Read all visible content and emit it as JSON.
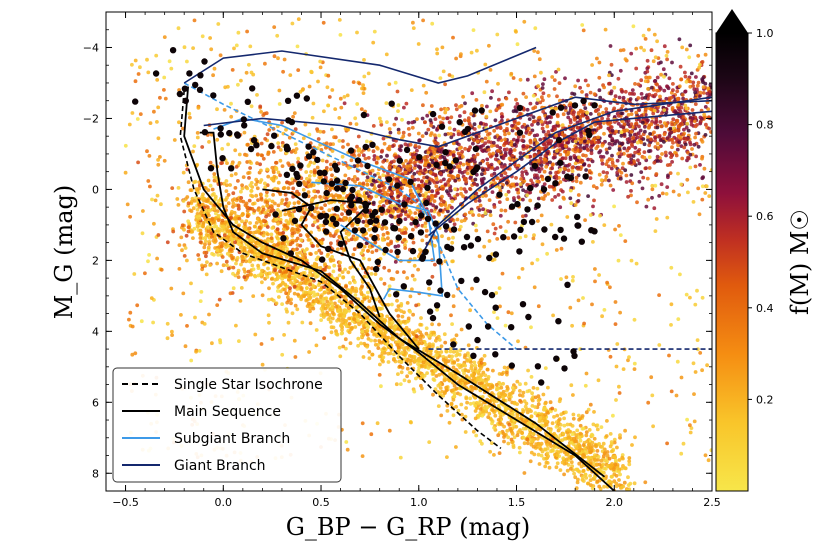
{
  "chart_data": {
    "type": "scatter",
    "xlabel": "G_BP − G_RP (mag)",
    "ylabel": "M_G (mag)",
    "xlim": [
      -0.6,
      2.5
    ],
    "ylim": [
      8.5,
      -5.0
    ],
    "y_inverted": true,
    "xticks": [
      -0.5,
      0.0,
      0.5,
      1.0,
      1.5,
      2.0,
      2.5
    ],
    "xtick_labels": [
      "−0.5",
      "0.0",
      "0.5",
      "1.0",
      "1.5",
      "2.0",
      "2.5"
    ],
    "yticks": [
      -4,
      -2,
      0,
      2,
      4,
      6,
      8
    ],
    "ytick_labels": [
      "−4",
      "−2",
      "0",
      "2",
      "4",
      "6",
      "8"
    ],
    "colorbar": {
      "label": "f(M) M☉",
      "range": [
        0.0,
        1.0
      ],
      "extend": "max",
      "ticks": [
        0.2,
        0.4,
        0.6,
        0.8,
        1.0
      ],
      "tick_labels": [
        "0.2",
        "0.4",
        "0.6",
        "0.8",
        "1.0"
      ],
      "colormap": [
        "#f7e64a",
        "#f9b11c",
        "#ec6e0a",
        "#c7331f",
        "#8a0e3c",
        "#4a0b3a",
        "#1a0714",
        "#000000"
      ]
    },
    "legend": {
      "placement": "lower-left",
      "entries": [
        {
          "label": "Single Star Isochrone",
          "color": "#000000",
          "style": "dashed"
        },
        {
          "label": "Main Sequence",
          "color": "#000000",
          "style": "solid"
        },
        {
          "label": "Subgiant Branch",
          "color": "#3d9ae8",
          "style": "solid"
        },
        {
          "label": "Giant Branch",
          "color": "#14286e",
          "style": "solid"
        }
      ]
    },
    "series": [
      {
        "name": "Single Star Isochrone",
        "color": "#000000",
        "style": "dashed",
        "points": [
          [
            -0.2,
            -2.8
          ],
          [
            -0.22,
            -1.5
          ],
          [
            -0.15,
            0.0
          ],
          [
            -0.05,
            1.2
          ],
          [
            0.1,
            1.8
          ],
          [
            0.3,
            2.2
          ],
          [
            0.5,
            2.6
          ],
          [
            0.7,
            3.5
          ],
          [
            0.9,
            4.7
          ],
          [
            1.1,
            5.8
          ],
          [
            1.3,
            6.8
          ],
          [
            1.42,
            7.3
          ]
        ]
      },
      {
        "name": "Main Sequence",
        "color": "#000000",
        "style": "solid",
        "points": [
          [
            -0.18,
            -2.9
          ],
          [
            -0.2,
            -1.5
          ],
          [
            -0.1,
            0.0
          ],
          [
            0.05,
            1.0
          ],
          [
            0.2,
            1.5
          ],
          [
            0.4,
            2.0
          ],
          [
            0.6,
            2.8
          ],
          [
            0.8,
            3.8
          ],
          [
            1.0,
            4.6
          ],
          [
            1.2,
            5.5
          ],
          [
            1.5,
            6.5
          ],
          [
            1.8,
            7.5
          ],
          [
            2.0,
            8.5
          ]
        ]
      },
      {
        "name": "Main Sequence",
        "color": "#000000",
        "style": "solid",
        "points": [
          [
            -0.12,
            -1.6
          ],
          [
            -0.05,
            -1.6
          ],
          [
            -0.03,
            -0.5
          ],
          [
            0.0,
            0.5
          ],
          [
            0.05,
            1.2
          ],
          [
            0.2,
            1.8
          ],
          [
            0.5,
            2.3
          ],
          [
            0.7,
            3.2
          ],
          [
            0.9,
            4.2
          ],
          [
            1.2,
            5.2
          ],
          [
            1.6,
            6.6
          ],
          [
            1.95,
            8.1
          ]
        ]
      },
      {
        "name": "Main Sequence",
        "color": "#000000",
        "style": "solid",
        "points": [
          [
            0.2,
            0.0
          ],
          [
            0.35,
            0.1
          ],
          [
            0.45,
            0.5
          ],
          [
            0.4,
            1.0
          ],
          [
            0.5,
            1.6
          ],
          [
            0.7,
            2.0
          ],
          [
            0.85,
            3.5
          ],
          [
            1.0,
            4.5
          ]
        ]
      },
      {
        "name": "Main Sequence",
        "color": "#000000",
        "style": "solid",
        "points": [
          [
            0.3,
            0.6
          ],
          [
            0.55,
            0.3
          ],
          [
            0.75,
            0.4
          ],
          [
            0.6,
            1.2
          ],
          [
            0.65,
            2.0
          ],
          [
            0.75,
            2.8
          ],
          [
            0.8,
            3.6
          ]
        ]
      },
      {
        "name": "Subgiant Branch",
        "color": "#3d9ae8",
        "style": "dashed",
        "points": [
          [
            -0.2,
            -3.0
          ],
          [
            0.0,
            -2.4
          ],
          [
            0.3,
            -1.6
          ],
          [
            0.6,
            -0.8
          ],
          [
            0.9,
            0.0
          ],
          [
            1.0,
            0.4
          ],
          [
            1.1,
            1.5
          ],
          [
            1.2,
            2.8
          ],
          [
            1.35,
            3.8
          ],
          [
            1.5,
            4.5
          ]
        ]
      },
      {
        "name": "Subgiant Branch",
        "color": "#3d9ae8",
        "style": "solid",
        "points": [
          [
            -0.05,
            -1.7
          ],
          [
            0.1,
            -2.0
          ],
          [
            0.3,
            -1.8
          ],
          [
            0.5,
            -1.3
          ],
          [
            0.7,
            -0.8
          ],
          [
            0.95,
            -0.3
          ],
          [
            1.05,
            0.8
          ],
          [
            1.08,
            2.0
          ],
          [
            0.9,
            2.0
          ],
          [
            0.75,
            1.5
          ],
          [
            0.6,
            1.0
          ]
        ]
      },
      {
        "name": "Subgiant Branch",
        "color": "#3d9ae8",
        "style": "solid",
        "points": [
          [
            0.45,
            -0.2
          ],
          [
            0.7,
            -0.1
          ],
          [
            0.9,
            0.4
          ],
          [
            1.05,
            0.6
          ],
          [
            1.1,
            1.3
          ],
          [
            1.12,
            3.0
          ],
          [
            1.0,
            2.9
          ],
          [
            0.85,
            2.8
          ],
          [
            0.82,
            3.1
          ]
        ]
      },
      {
        "name": "Giant Branch",
        "color": "#14286e",
        "style": "solid",
        "points": [
          [
            -0.2,
            -3.0
          ],
          [
            0.0,
            -3.7
          ],
          [
            0.3,
            -3.9
          ],
          [
            0.8,
            -3.5
          ],
          [
            1.1,
            -3.0
          ],
          [
            1.25,
            -3.2
          ],
          [
            1.6,
            -4.0
          ]
        ]
      },
      {
        "name": "Giant Branch",
        "color": "#14286e",
        "style": "solid",
        "points": [
          [
            -0.1,
            -1.8
          ],
          [
            0.2,
            -2.0
          ],
          [
            0.6,
            -1.8
          ],
          [
            0.9,
            -1.4
          ],
          [
            1.1,
            -1.2
          ],
          [
            1.4,
            -1.8
          ],
          [
            1.8,
            -2.6
          ],
          [
            2.1,
            -2.4
          ],
          [
            2.5,
            -2.5
          ]
        ]
      },
      {
        "name": "Giant Branch",
        "color": "#14286e",
        "style": "solid",
        "points": [
          [
            1.0,
            2.0
          ],
          [
            1.1,
            1.0
          ],
          [
            1.3,
            0.0
          ],
          [
            1.5,
            -0.8
          ],
          [
            1.7,
            -1.6
          ],
          [
            2.0,
            -2.2
          ],
          [
            2.5,
            -2.6
          ]
        ]
      },
      {
        "name": "Giant Branch",
        "color": "#14286e",
        "style": "solid",
        "points": [
          [
            1.05,
            1.3
          ],
          [
            1.25,
            0.4
          ],
          [
            1.5,
            -0.5
          ],
          [
            1.7,
            -1.3
          ],
          [
            1.9,
            -1.9
          ],
          [
            2.5,
            -2.2
          ]
        ]
      },
      {
        "name": "Giant Branch",
        "color": "#14286e",
        "style": "dashed",
        "points": [
          [
            1.05,
            4.5
          ],
          [
            2.5,
            4.5
          ]
        ]
      }
    ]
  }
}
